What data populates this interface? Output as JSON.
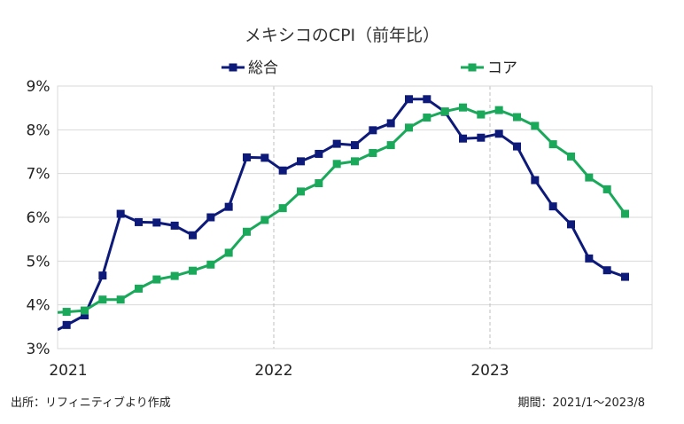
{
  "chart_data": {
    "type": "line",
    "title": "メキシコのCPI（前年比）",
    "ylim": [
      3,
      9
    ],
    "y_ticks": [
      3,
      4,
      5,
      6,
      7,
      8,
      9
    ],
    "y_tick_labels": [
      "3%",
      "4%",
      "5%",
      "6%",
      "7%",
      "8%",
      "9%"
    ],
    "x_range": [
      0,
      33
    ],
    "x_ticks": [
      0,
      12,
      24
    ],
    "x_tick_labels": [
      "2021",
      "2022",
      "2023"
    ],
    "legend_position": "top",
    "series": [
      {
        "name": "総合",
        "color": "#0d1a7a",
        "x": [
          0.5,
          1.5,
          2.5,
          3.5,
          4.5,
          5.5,
          6.5,
          7.5,
          8.5,
          9.5,
          10.5,
          11.5,
          12.5,
          13.5,
          14.5,
          15.5,
          16.5,
          17.5,
          18.5,
          19.5,
          20.5,
          21.5,
          22.5,
          23.5,
          24.5,
          25.5,
          26.5,
          27.5,
          28.5,
          29.5,
          30.5,
          31.5
        ],
        "values": [
          3.54,
          3.76,
          4.67,
          6.08,
          5.89,
          5.88,
          5.81,
          5.59,
          6.0,
          6.24,
          7.37,
          7.36,
          7.07,
          7.28,
          7.45,
          7.68,
          7.65,
          7.99,
          8.15,
          8.7,
          8.7,
          8.41,
          7.8,
          7.82,
          7.91,
          7.62,
          6.85,
          6.25,
          5.84,
          5.06,
          4.79,
          4.64
        ]
      },
      {
        "name": "コア",
        "color": "#1aa85a",
        "x": [
          0.5,
          1.5,
          2.5,
          3.5,
          4.5,
          5.5,
          6.5,
          7.5,
          8.5,
          9.5,
          10.5,
          11.5,
          12.5,
          13.5,
          14.5,
          15.5,
          16.5,
          17.5,
          18.5,
          19.5,
          20.5,
          21.5,
          22.5,
          23.5,
          24.5,
          25.5,
          26.5,
          27.5,
          28.5,
          29.5,
          30.5,
          31.5
        ],
        "values": [
          3.84,
          3.87,
          4.12,
          4.12,
          4.37,
          4.58,
          4.66,
          4.78,
          4.92,
          5.19,
          5.67,
          5.94,
          6.21,
          6.59,
          6.78,
          7.22,
          7.28,
          7.47,
          7.65,
          8.05,
          8.28,
          8.42,
          8.51,
          8.35,
          8.45,
          8.29,
          8.09,
          7.67,
          7.39,
          6.91,
          6.64,
          6.08
        ]
      }
    ]
  },
  "footer": {
    "source": "出所：リフィニティブより作成",
    "period": "期間：2021/1～2023/8"
  }
}
